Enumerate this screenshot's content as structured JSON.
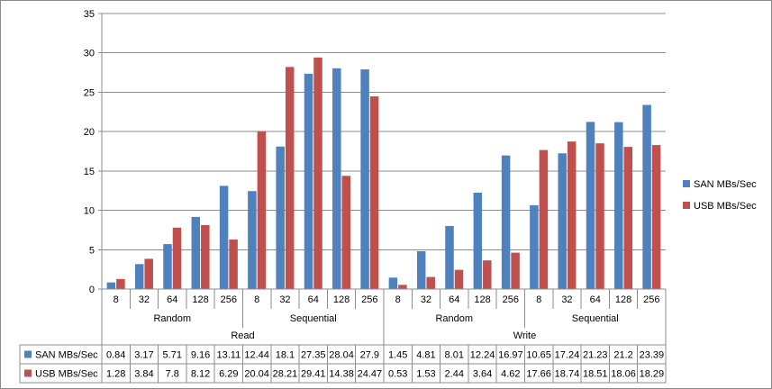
{
  "chart_data": {
    "type": "bar",
    "categories": [
      "8",
      "32",
      "64",
      "128",
      "256",
      "8",
      "32",
      "64",
      "128",
      "256",
      "8",
      "32",
      "64",
      "128",
      "256",
      "8",
      "32",
      "64",
      "128",
      "256"
    ],
    "subgroups": [
      {
        "label": "Random",
        "start": 0,
        "count": 5
      },
      {
        "label": "Sequential",
        "start": 5,
        "count": 5
      },
      {
        "label": "Random",
        "start": 10,
        "count": 5
      },
      {
        "label": "Sequential",
        "start": 15,
        "count": 5
      }
    ],
    "groups": [
      {
        "label": "Read",
        "start": 0,
        "count": 10
      },
      {
        "label": "Write",
        "start": 10,
        "count": 10
      }
    ],
    "series": [
      {
        "name": "SAN MBs/Sec",
        "color": "#4f81bd",
        "values": [
          0.84,
          3.17,
          5.71,
          9.16,
          13.11,
          12.44,
          18.1,
          27.35,
          28.04,
          27.9,
          1.45,
          4.81,
          8.01,
          12.24,
          16.97,
          10.65,
          17.24,
          21.23,
          21.2,
          23.39
        ]
      },
      {
        "name": "USB MBs/Sec",
        "color": "#c0504d",
        "values": [
          1.28,
          3.84,
          7.8,
          8.12,
          6.29,
          20.04,
          28.21,
          29.41,
          14.38,
          24.47,
          0.53,
          1.53,
          2.44,
          3.64,
          4.62,
          17.66,
          18.74,
          18.51,
          18.06,
          18.29
        ]
      }
    ],
    "ylim": [
      0,
      35
    ],
    "yticks": [
      0,
      5,
      10,
      15,
      20,
      25,
      30,
      35
    ],
    "grid": true,
    "legend": "right",
    "data_table": true
  }
}
